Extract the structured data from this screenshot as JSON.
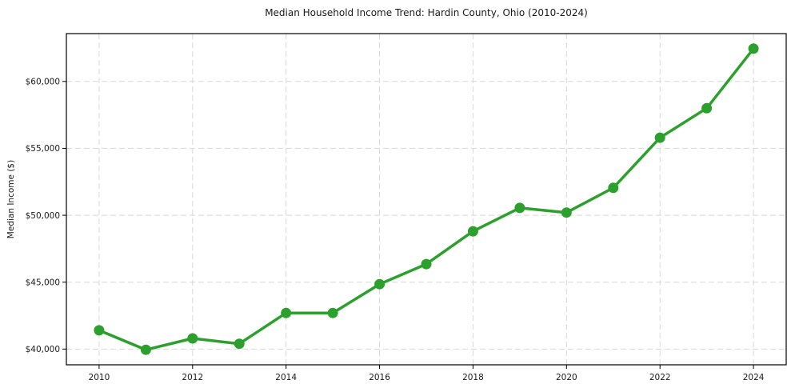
{
  "page": {
    "background_color": "#ffffff"
  },
  "chart_data": {
    "type": "line",
    "title": "Median Household Income Trend: Hardin County, Ohio (2010-2024)",
    "xlabel": "",
    "ylabel": "Median Income ($)",
    "x": [
      2010,
      2011,
      2012,
      2013,
      2014,
      2015,
      2016,
      2017,
      2018,
      2019,
      2020,
      2021,
      2022,
      2023,
      2024
    ],
    "values": [
      41400,
      39950,
      40800,
      40400,
      42700,
      42700,
      44850,
      46350,
      48800,
      50550,
      50200,
      52050,
      55800,
      58000,
      62450
    ],
    "xlim": [
      2009.3,
      2024.7
    ],
    "ylim": [
      38825,
      63575
    ],
    "x_ticks": [
      {
        "value": 2010,
        "label": "2010"
      },
      {
        "value": 2012,
        "label": "2012"
      },
      {
        "value": 2014,
        "label": "2014"
      },
      {
        "value": 2016,
        "label": "2016"
      },
      {
        "value": 2018,
        "label": "2018"
      },
      {
        "value": 2020,
        "label": "2020"
      },
      {
        "value": 2022,
        "label": "2022"
      },
      {
        "value": 2024,
        "label": "2024"
      }
    ],
    "y_ticks": [
      {
        "value": 40000,
        "label": "$40,000"
      },
      {
        "value": 45000,
        "label": "$45,000"
      },
      {
        "value": 50000,
        "label": "$50,000"
      },
      {
        "value": 55000,
        "label": "$55,000"
      },
      {
        "value": 60000,
        "label": "$60,000"
      }
    ],
    "grid": true,
    "grid_style": "dashed",
    "legend_position": "none",
    "line_color": "#2ca02c",
    "grid_color": "#d8d8d8",
    "spine_color": "#000000",
    "text_color": "#1a1a1a",
    "marker": "circle"
  }
}
